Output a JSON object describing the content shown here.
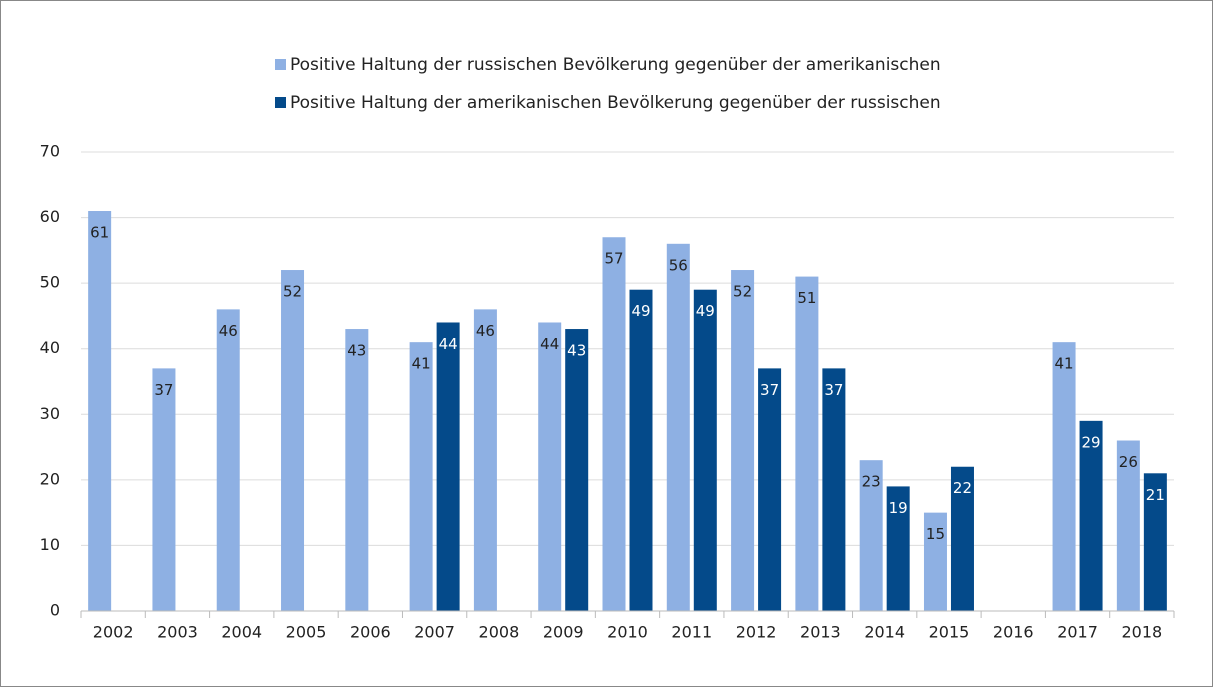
{
  "chart_data": {
    "type": "bar",
    "categories": [
      "2002",
      "2003",
      "2004",
      "2005",
      "2006",
      "2007",
      "2008",
      "2009",
      "2010",
      "2011",
      "2012",
      "2013",
      "2014",
      "2015",
      "2016",
      "2017",
      "2018"
    ],
    "series": [
      {
        "name": "Positive Haltung der russischen Bevölkerung gegenüber der amerikanischen",
        "color": "#8eb0e3",
        "values": [
          61,
          37,
          46,
          52,
          43,
          41,
          46,
          44,
          57,
          56,
          52,
          51,
          23,
          15,
          null,
          41,
          26
        ]
      },
      {
        "name": "Positive Haltung der amerikanischen Bevölkerung gegenüber der russischen",
        "color": "#044a8a",
        "values": [
          null,
          null,
          null,
          null,
          null,
          44,
          null,
          43,
          49,
          49,
          37,
          37,
          19,
          22,
          null,
          29,
          21
        ]
      }
    ],
    "ylim": [
      0,
      70
    ],
    "yticks": [
      0,
      10,
      20,
      30,
      40,
      50,
      60,
      70
    ],
    "grid": true,
    "legend": "top"
  }
}
